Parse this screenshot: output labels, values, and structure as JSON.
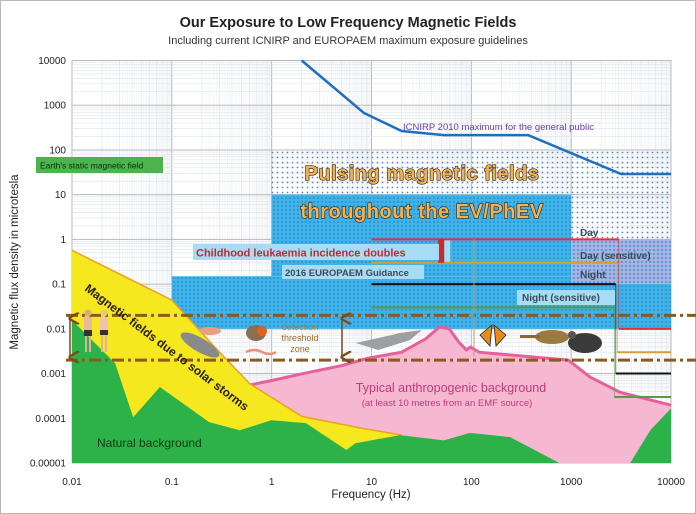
{
  "chart_data": {
    "type": "area",
    "title": "Our Exposure to Low Frequency Magnetic Fields",
    "subtitle": "Including current ICNIRP and EUROPAEM maximum exposure guidelines",
    "xlabel": "Frequency (Hz)",
    "ylabel": "Magnetic flux density in microtesla",
    "xscale": "log",
    "yscale": "log",
    "xlim": [
      0.01,
      10000
    ],
    "ylim": [
      1e-05,
      10000
    ],
    "grid": true,
    "x_ticks": [
      "0.01",
      "0.1",
      "1",
      "10",
      "100",
      "1000",
      "10000"
    ],
    "x_tick_values": [
      0.01,
      0.1,
      1,
      10,
      100,
      1000,
      10000
    ],
    "y_ticks": [
      "10000",
      "1000",
      "100",
      "10",
      "1",
      "0.1",
      "0.01",
      "0.001",
      "0.0001",
      "0.00001"
    ],
    "y_tick_values": [
      10000,
      1000,
      100,
      10,
      1,
      0.1,
      0.01,
      0.001,
      0.0001,
      1e-05
    ],
    "icnirp": {
      "label": "ICNIRP 2010 maximum for the general public",
      "color": "#1f6fc0",
      "label_color": "#6a3fa8",
      "points": [
        [
          2,
          10000
        ],
        [
          8.4,
          670
        ],
        [
          20,
          265
        ],
        [
          53,
          215
        ],
        [
          370,
          215
        ],
        [
          3160,
          29
        ],
        [
          10000,
          29
        ]
      ]
    },
    "earth_static": {
      "label": "Earth's static magnetic field",
      "color": "#4cb44f"
    },
    "pulsing": {
      "line1": "Pulsing magnetic fields",
      "line2": "throughout the EV/PhEV",
      "dotted_region": {
        "f": [
          1,
          10000
        ],
        "b": [
          0.01,
          100
        ]
      },
      "solid_regions": [
        {
          "f": [
            1,
            1000
          ],
          "b": [
            0.15,
            10
          ]
        },
        {
          "f": [
            0.1,
            1000
          ],
          "b": [
            0.01,
            0.15
          ]
        },
        {
          "f": [
            1000,
            10000
          ],
          "b": [
            0.01,
            0.1
          ]
        }
      ],
      "sensitive_region": {
        "f": [
          1000,
          10000
        ],
        "b": [
          0.1,
          1
        ]
      },
      "color": "#3db3ea",
      "sensitive_color": "#a7b3e2"
    },
    "leukaemia": {
      "label": "Childhood leukaemia incidence doubles",
      "f": 50,
      "b": [
        0.3,
        1
      ],
      "color": "#cc2a2a"
    },
    "europaem": {
      "label": "2016 EUROPAEM Guidance",
      "lines": [
        {
          "name": "Day",
          "color": "#e0303a",
          "low_freq_b": 1,
          "high_freq_b": 0.01
        },
        {
          "name": "Day (sensitive)",
          "color": "#d4a030",
          "low_freq_b": 0.3,
          "high_freq_b": 0.003
        },
        {
          "name": "Night",
          "color": "#111111",
          "low_freq_b": 0.1,
          "high_freq_b": 0.001
        },
        {
          "name": "Night (sensitive)",
          "color": "#5a9a40",
          "low_freq_b": 0.03,
          "high_freq_b": 0.0003
        }
      ],
      "f_start": 10,
      "f_break": 3000,
      "f_end": 10000
    },
    "detection_threshold": {
      "label_lines": [
        "detection",
        "threshold",
        "zone"
      ],
      "b": [
        0.002,
        0.02
      ],
      "color": "#8a5a20"
    },
    "solar_storms": {
      "label": "Magnetic fields due to solar storms",
      "color": "#f5e81e",
      "edge_color": "#f0a020",
      "upper": [
        [
          0.01,
          0.57
        ],
        [
          0.1,
          0.044
        ],
        [
          0.3,
          0.003
        ],
        [
          0.6,
          0.0006
        ],
        [
          2,
          0.00011
        ],
        [
          8,
          6e-05
        ],
        [
          20,
          4.2e-05
        ]
      ]
    },
    "natural": {
      "label": "Natural background",
      "color": "#2db24a",
      "upper": [
        [
          0.01,
          0.0157
        ],
        [
          0.027,
          0.0017
        ],
        [
          0.041,
          0.000105
        ],
        [
          0.076,
          0.0005
        ],
        [
          0.236,
          8.2e-05
        ],
        [
          0.48,
          5.4e-05
        ],
        [
          0.99,
          9e-05
        ],
        [
          2.2,
          7.8e-05
        ],
        [
          5.6,
          1.95e-05
        ],
        [
          6.9,
          2.77e-05
        ],
        [
          19.4,
          4.2e-05
        ],
        [
          53,
          3.2e-05
        ],
        [
          97,
          4.7e-05
        ],
        [
          245,
          3.8e-05
        ],
        [
          760,
          1e-05
        ],
        [
          3900,
          1e-05
        ],
        [
          6200,
          5.4e-05
        ],
        [
          10000,
          0.000166
        ]
      ]
    },
    "anthropogenic": {
      "label": "Typical anthropogenic background",
      "note": "(at least 10 metres from an EMF source)",
      "color": "#f5b8d0",
      "edge_color": "#e8609a",
      "label_color": "#c03a78",
      "upper": [
        [
          0.59,
          0.00055
        ],
        [
          1,
          0.0007
        ],
        [
          2.4,
          0.00107
        ],
        [
          5,
          0.0015
        ],
        [
          9.2,
          0.0022
        ],
        [
          20,
          0.003
        ],
        [
          35,
          0.006
        ],
        [
          48,
          0.011
        ],
        [
          60,
          0.01
        ],
        [
          75,
          0.005
        ],
        [
          89,
          0.0034
        ],
        [
          98,
          0.0039
        ],
        [
          120,
          0.003
        ],
        [
          300,
          0.0025
        ],
        [
          935,
          0.002
        ],
        [
          1550,
          0.00083
        ],
        [
          3100,
          0.00038
        ],
        [
          10000,
          0.000196
        ]
      ]
    }
  }
}
